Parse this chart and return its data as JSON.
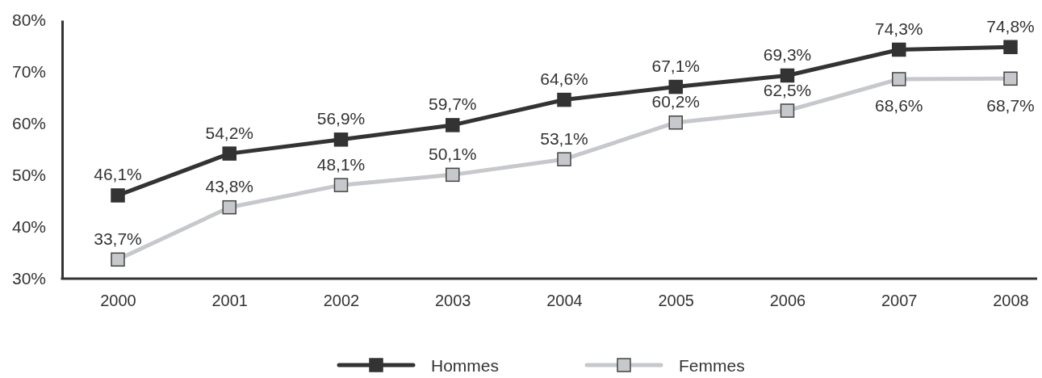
{
  "chart_data": {
    "type": "line",
    "categories": [
      "2000",
      "2001",
      "2002",
      "2003",
      "2004",
      "2005",
      "2006",
      "2007",
      "2008"
    ],
    "series": [
      {
        "name": "Hommes",
        "color": "#333333",
        "values": [
          46.1,
          54.2,
          56.9,
          59.7,
          64.6,
          67.1,
          69.3,
          74.3,
          74.8
        ],
        "value_labels": [
          "46,1%",
          "54,2%",
          "56,9%",
          "59,7%",
          "64,6%",
          "67,1%",
          "69,3%",
          "74,3%",
          "74,8%"
        ]
      },
      {
        "name": "Femmes",
        "color": "#c6c8cb",
        "values": [
          33.7,
          43.8,
          48.1,
          50.1,
          53.1,
          60.2,
          62.5,
          68.6,
          68.7
        ],
        "value_labels": [
          "33,7%",
          "43,8%",
          "48,1%",
          "50,1%",
          "53,1%",
          "60,2%",
          "62,5%",
          "68,6%",
          "68,7%"
        ]
      }
    ],
    "ylim": [
      30,
      80
    ],
    "yticks": [
      {
        "value": 30,
        "label": "30%"
      },
      {
        "value": 40,
        "label": "40%"
      },
      {
        "value": 50,
        "label": "50%"
      },
      {
        "value": 60,
        "label": "60%"
      },
      {
        "value": 70,
        "label": "70%"
      },
      {
        "value": 80,
        "label": "80%"
      }
    ],
    "grid": false,
    "legend": "bottom",
    "marker": "square",
    "line_style": "solid"
  }
}
